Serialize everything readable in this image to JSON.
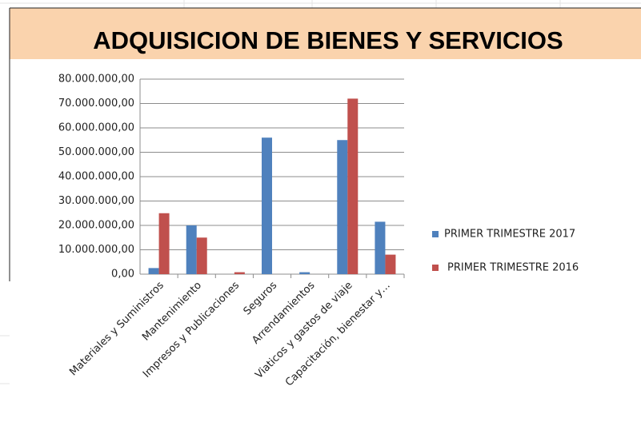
{
  "chart_data": {
    "type": "bar",
    "title": "ADQUISICION DE BIENES Y SERVICIOS",
    "categories": [
      "Materiales y Suministros",
      "Mantenimiento",
      "Impresos y Publicaciones",
      "Seguros",
      "Arrendamientos",
      "Viaticos y gastos de viaje",
      "Capacitación, bienestar y…"
    ],
    "series": [
      {
        "name": "PRIMER TRIMESTRE 2017",
        "color": "#4f81bd",
        "values": [
          2500000,
          20000000,
          0,
          56000000,
          800000,
          55000000,
          21500000
        ]
      },
      {
        "name": "PRIMER TRIMESTRE 2016",
        "color": "#c0504d",
        "values": [
          25000000,
          15000000,
          800000,
          0,
          0,
          72000000,
          8000000
        ]
      }
    ],
    "ylim": [
      0,
      80000000
    ],
    "yticks": [
      {
        "value": 0,
        "label": "0,00"
      },
      {
        "value": 10000000,
        "label": "10.000.000,00"
      },
      {
        "value": 20000000,
        "label": "20.000.000,00"
      },
      {
        "value": 30000000,
        "label": "30.000.000,00"
      },
      {
        "value": 40000000,
        "label": "40.000.000,00"
      },
      {
        "value": 50000000,
        "label": "50.000.000,00"
      },
      {
        "value": 60000000,
        "label": "60.000.000,00"
      },
      {
        "value": 70000000,
        "label": "70.000.000,00"
      },
      {
        "value": 80000000,
        "label": "80.000.000,00"
      }
    ],
    "grid": true,
    "legend": "right"
  }
}
